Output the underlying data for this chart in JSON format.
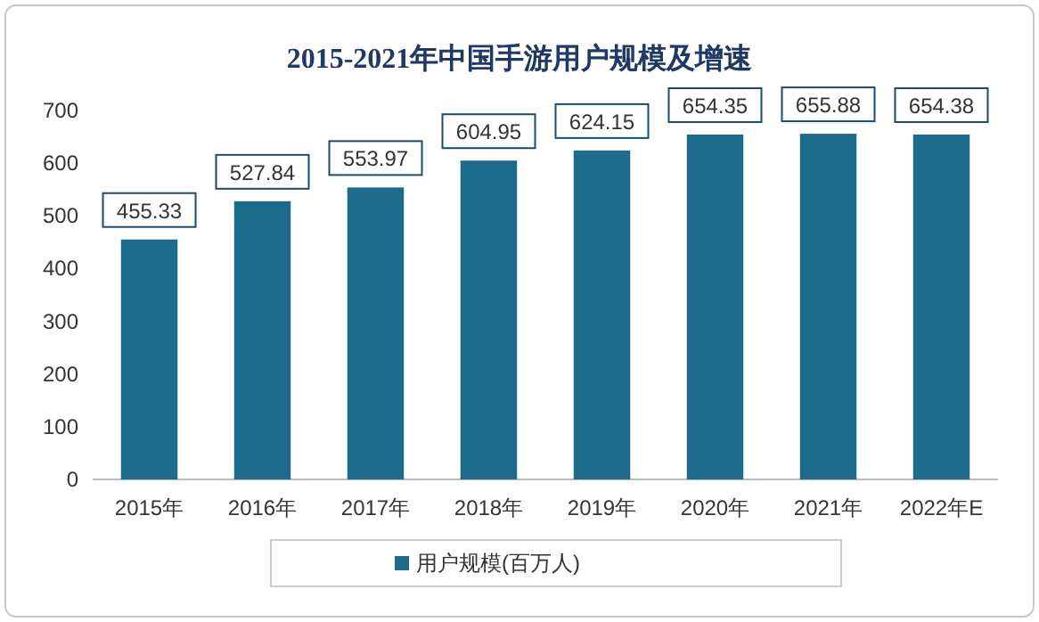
{
  "chart_data": {
    "type": "bar",
    "title": "2015-2021年中国手游用户规模及增速",
    "categories": [
      "2015年",
      "2016年",
      "2017年",
      "2018年",
      "2019年",
      "2020年",
      "2021年",
      "2022年E"
    ],
    "series": [
      {
        "name": "用户规模(百万人)",
        "color": "#1c6b8b",
        "values": [
          455.33,
          527.84,
          553.97,
          604.95,
          624.15,
          654.35,
          655.88,
          654.38
        ]
      }
    ],
    "ylim": [
      0,
      700
    ],
    "yticks": [
      0,
      100,
      200,
      300,
      400,
      500,
      600,
      700
    ],
    "data_labels": true,
    "legend": "bottom",
    "grid": false
  }
}
